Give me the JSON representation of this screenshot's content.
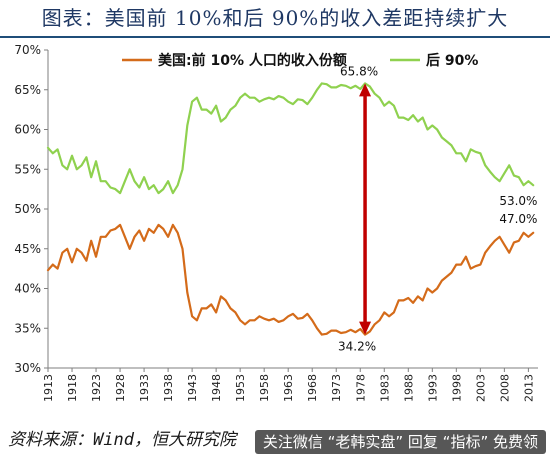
{
  "header": {
    "title": "图表：美国前 10%和后 90%的收入差距持续扩大"
  },
  "footer": {
    "source": "资料来源：Wind，恒大研究院",
    "watermark": "关注微信 “老韩实盘” 回复 “指标” 免费领"
  },
  "colors": {
    "top10": "#d46b1a",
    "bottom90": "#8fd14f",
    "arrow": "#c00000",
    "title": "#1f3864"
  },
  "chart_data": {
    "type": "line",
    "title": "",
    "xlabel": "",
    "ylabel": "",
    "xlim": [
      1913,
      2015
    ],
    "ylim": [
      30,
      70
    ],
    "yticks": [
      30,
      35,
      40,
      45,
      50,
      55,
      60,
      65,
      70
    ],
    "ytick_labels": [
      "30%",
      "35%",
      "40%",
      "45%",
      "50%",
      "55%",
      "60%",
      "65%",
      "70%"
    ],
    "xticks": [
      1913,
      1918,
      1923,
      1928,
      1933,
      1938,
      1943,
      1948,
      1953,
      1958,
      1963,
      1968,
      1973,
      1978,
      1983,
      1988,
      1993,
      1998,
      2003,
      2008,
      2013
    ],
    "grid": false,
    "legend": {
      "placement": "top",
      "entries": [
        "美国:前 10% 人口的收入份额",
        "后 90%"
      ]
    },
    "series": [
      {
        "name": "美国:前 10% 人口的收入份额",
        "x": [
          1913,
          1914,
          1915,
          1916,
          1917,
          1918,
          1919,
          1920,
          1921,
          1922,
          1923,
          1924,
          1925,
          1926,
          1927,
          1928,
          1929,
          1930,
          1931,
          1932,
          1933,
          1934,
          1935,
          1936,
          1937,
          1938,
          1939,
          1940,
          1941,
          1942,
          1943,
          1944,
          1945,
          1946,
          1947,
          1948,
          1949,
          1950,
          1951,
          1952,
          1953,
          1954,
          1955,
          1956,
          1957,
          1958,
          1959,
          1960,
          1961,
          1962,
          1963,
          1964,
          1965,
          1966,
          1967,
          1968,
          1969,
          1970,
          1971,
          1972,
          1973,
          1974,
          1975,
          1976,
          1977,
          1978,
          1979,
          1980,
          1981,
          1982,
          1983,
          1984,
          1985,
          1986,
          1987,
          1988,
          1989,
          1990,
          1991,
          1992,
          1993,
          1994,
          1995,
          1996,
          1997,
          1998,
          1999,
          2000,
          2001,
          2002,
          2003,
          2004,
          2005,
          2006,
          2007,
          2008,
          2009,
          2010,
          2011,
          2012,
          2013,
          2014
        ],
        "values": [
          42.3,
          43.0,
          42.5,
          44.5,
          45.0,
          43.3,
          45.0,
          44.5,
          43.5,
          46.0,
          44.0,
          46.5,
          46.5,
          47.3,
          47.5,
          48.0,
          46.5,
          45.0,
          46.5,
          47.3,
          46.0,
          47.5,
          47.0,
          48.0,
          47.5,
          46.5,
          48.0,
          47.0,
          45.0,
          39.5,
          36.5,
          36.0,
          37.5,
          37.5,
          38.0,
          37.0,
          39.0,
          38.5,
          37.5,
          37.0,
          36.0,
          35.5,
          36.0,
          36.0,
          36.5,
          36.2,
          36.0,
          36.2,
          35.8,
          36.0,
          36.5,
          36.8,
          36.2,
          36.3,
          36.8,
          36.0,
          35.0,
          34.2,
          34.3,
          34.7,
          34.7,
          34.4,
          34.5,
          34.8,
          34.5,
          34.9,
          34.2,
          34.6,
          35.5,
          36.0,
          37.0,
          36.5,
          37.0,
          38.5,
          38.5,
          38.8,
          38.2,
          39.0,
          38.5,
          40.0,
          39.5,
          40.0,
          41.0,
          41.5,
          42.0,
          43.0,
          43.0,
          44.0,
          42.5,
          42.8,
          43.0,
          44.5,
          45.3,
          46.0,
          46.5,
          45.5,
          44.5,
          45.8,
          46.0,
          47.0,
          46.5,
          47.0
        ]
      },
      {
        "name": "后 90%",
        "x": [
          1913,
          1914,
          1915,
          1916,
          1917,
          1918,
          1919,
          1920,
          1921,
          1922,
          1923,
          1924,
          1925,
          1926,
          1927,
          1928,
          1929,
          1930,
          1931,
          1932,
          1933,
          1934,
          1935,
          1936,
          1937,
          1938,
          1939,
          1940,
          1941,
          1942,
          1943,
          1944,
          1945,
          1946,
          1947,
          1948,
          1949,
          1950,
          1951,
          1952,
          1953,
          1954,
          1955,
          1956,
          1957,
          1958,
          1959,
          1960,
          1961,
          1962,
          1963,
          1964,
          1965,
          1966,
          1967,
          1968,
          1969,
          1970,
          1971,
          1972,
          1973,
          1974,
          1975,
          1976,
          1977,
          1978,
          1979,
          1980,
          1981,
          1982,
          1983,
          1984,
          1985,
          1986,
          1987,
          1988,
          1989,
          1990,
          1991,
          1992,
          1993,
          1994,
          1995,
          1996,
          1997,
          1998,
          1999,
          2000,
          2001,
          2002,
          2003,
          2004,
          2005,
          2006,
          2007,
          2008,
          2009,
          2010,
          2011,
          2012,
          2013,
          2014
        ],
        "values": [
          57.7,
          57.0,
          57.5,
          55.5,
          55.0,
          56.7,
          55.0,
          55.5,
          56.5,
          54.0,
          56.0,
          53.5,
          53.5,
          52.7,
          52.5,
          52.0,
          53.5,
          55.0,
          53.5,
          52.7,
          54.0,
          52.5,
          53.0,
          52.0,
          52.5,
          53.5,
          52.0,
          53.0,
          55.0,
          60.5,
          63.5,
          64.0,
          62.5,
          62.5,
          62.0,
          63.0,
          61.0,
          61.5,
          62.5,
          63.0,
          64.0,
          64.5,
          64.0,
          64.0,
          63.5,
          63.8,
          64.0,
          63.8,
          64.2,
          64.0,
          63.5,
          63.2,
          63.8,
          63.7,
          63.2,
          64.0,
          65.0,
          65.8,
          65.7,
          65.3,
          65.3,
          65.6,
          65.5,
          65.2,
          65.5,
          65.1,
          65.8,
          65.4,
          64.5,
          64.0,
          63.0,
          63.5,
          63.0,
          61.5,
          61.5,
          61.2,
          61.8,
          61.0,
          61.5,
          60.0,
          60.5,
          60.0,
          59.0,
          58.5,
          58.0,
          57.0,
          57.0,
          56.0,
          57.5,
          57.2,
          57.0,
          55.5,
          54.7,
          54.0,
          53.5,
          54.5,
          55.5,
          54.2,
          54.0,
          53.0,
          53.5,
          53.0
        ]
      }
    ],
    "annotations": [
      {
        "text": "65.8%",
        "x": 1979,
        "y": 65.8
      },
      {
        "text": "34.2%",
        "x": 1979,
        "y": 34.2
      },
      {
        "text": "53.0%",
        "x": 2013,
        "y": 53.0
      },
      {
        "text": "47.0%",
        "x": 2013,
        "y": 47.0
      }
    ],
    "arrow": {
      "x": 1979,
      "y_from": 34.2,
      "y_to": 65.8,
      "style": "double-headed"
    }
  }
}
